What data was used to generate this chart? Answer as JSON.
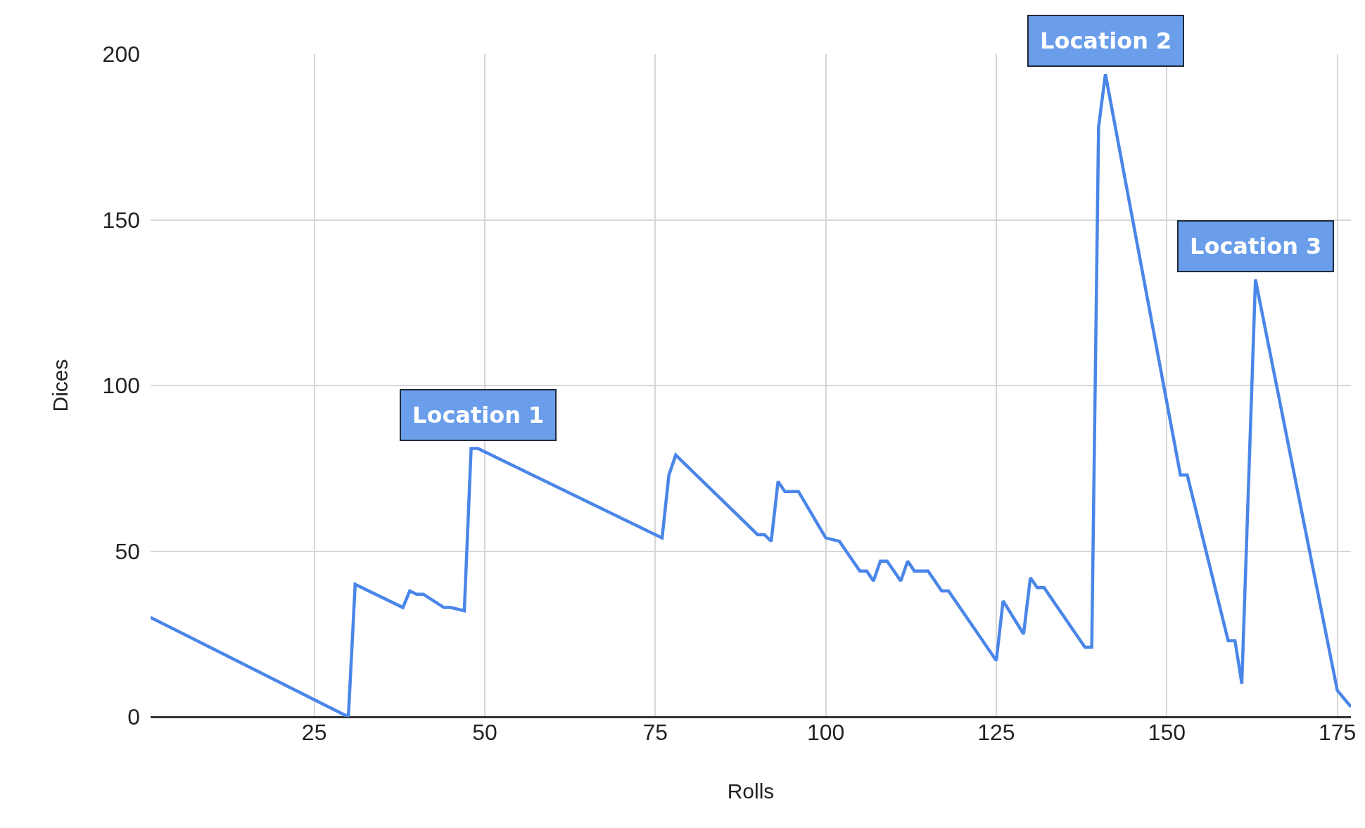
{
  "chart_data": {
    "type": "line",
    "xlabel": "Rolls",
    "ylabel": "Dices",
    "x": [
      1,
      30,
      31,
      38,
      39,
      40,
      41,
      44,
      45,
      47,
      48,
      49,
      76,
      77,
      78,
      90,
      91,
      92,
      93,
      94,
      96,
      100,
      102,
      105,
      106,
      107,
      108,
      109,
      111,
      112,
      113,
      115,
      117,
      118,
      125,
      126,
      129,
      130,
      131,
      132,
      138,
      139,
      140,
      141,
      152,
      153,
      159,
      160,
      161,
      163,
      175,
      177
    ],
    "series": [
      {
        "color": "#4a86e8",
        "values": [
          30,
          0,
          40,
          33,
          38,
          37,
          37,
          33,
          33,
          32,
          81,
          81,
          54,
          73,
          79,
          55,
          55,
          53,
          71,
          68,
          68,
          54,
          53,
          44,
          44,
          41,
          47,
          47,
          41,
          47,
          44,
          44,
          38,
          38,
          17,
          35,
          25,
          42,
          39,
          39,
          21,
          21,
          178,
          194,
          73,
          73,
          23,
          23,
          10,
          132,
          8,
          3
        ]
      }
    ],
    "xlim": [
      1,
      177
    ],
    "xticks": [
      25,
      50,
      75,
      100,
      125,
      150,
      175
    ],
    "ylim": [
      0,
      200
    ],
    "yticks": [
      0,
      50,
      100,
      150,
      200
    ],
    "grid": true,
    "marker": "none",
    "line_style": "solid",
    "annotations": [
      {
        "text": "Location 1",
        "x": 49,
        "y": 81
      },
      {
        "text": "Location 2",
        "x": 141,
        "y": 194
      },
      {
        "text": "Location 3",
        "x": 163,
        "y": 132
      }
    ]
  }
}
